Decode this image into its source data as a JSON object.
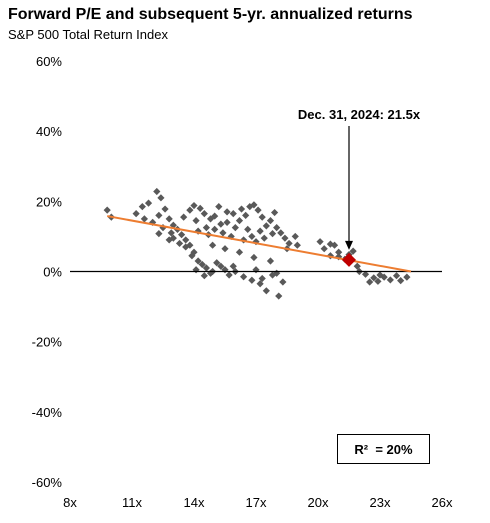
{
  "chart_data": {
    "type": "scatter",
    "title": "Forward P/E and subsequent 5-yr. annualized returns",
    "subtitle": "S&P 500 Total Return Index",
    "xlabel": "",
    "ylabel": "",
    "xlim": [
      8,
      26
    ],
    "ylim": [
      -60,
      60
    ],
    "x_ticks": [
      8,
      11,
      14,
      17,
      20,
      23,
      26
    ],
    "x_tick_labels": [
      "8x",
      "11x",
      "14x",
      "17x",
      "20x",
      "23x",
      "26x"
    ],
    "y_ticks": [
      60,
      40,
      20,
      0,
      -20,
      -40,
      -60
    ],
    "y_tick_labels": [
      "60%",
      "40%",
      "20%",
      "0%",
      "-20%",
      "-40%",
      "-60%"
    ],
    "grid": false,
    "colors": {
      "points": "#595959",
      "trendline": "#ED7D31",
      "current": "#C00000",
      "axis": "#000000"
    },
    "series": [
      {
        "points": [
          [
            9.8,
            17.5
          ],
          [
            10.0,
            15.5
          ],
          [
            11.2,
            16.5
          ],
          [
            11.5,
            18.5
          ],
          [
            11.8,
            19.5
          ],
          [
            12.2,
            22.8
          ],
          [
            12.4,
            21.0
          ],
          [
            11.6,
            15.0
          ],
          [
            12.0,
            14.0
          ],
          [
            12.3,
            16.0
          ],
          [
            12.6,
            17.8
          ],
          [
            12.8,
            15.0
          ],
          [
            13.0,
            13.2
          ],
          [
            12.5,
            12.5
          ],
          [
            12.9,
            11.0
          ],
          [
            13.2,
            12.0
          ],
          [
            13.4,
            10.5
          ],
          [
            13.6,
            9.0
          ],
          [
            13.3,
            8.0
          ],
          [
            13.8,
            7.5
          ],
          [
            13.0,
            9.5
          ],
          [
            12.3,
            10.8
          ],
          [
            12.8,
            9.0
          ],
          [
            13.5,
            15.5
          ],
          [
            13.8,
            17.5
          ],
          [
            14.0,
            18.8
          ],
          [
            14.3,
            18.0
          ],
          [
            14.1,
            14.5
          ],
          [
            14.5,
            16.5
          ],
          [
            14.8,
            15.0
          ],
          [
            14.6,
            12.5
          ],
          [
            14.2,
            11.5
          ],
          [
            14.7,
            10.5
          ],
          [
            15.0,
            12.0
          ],
          [
            15.3,
            13.5
          ],
          [
            15.6,
            14.0
          ],
          [
            15.0,
            15.8
          ],
          [
            15.4,
            11.0
          ],
          [
            15.8,
            10.0
          ],
          [
            16.0,
            12.5
          ],
          [
            16.2,
            14.5
          ],
          [
            16.5,
            16.0
          ],
          [
            16.7,
            18.5
          ],
          [
            16.9,
            19.0
          ],
          [
            17.1,
            17.5
          ],
          [
            17.3,
            15.5
          ],
          [
            17.5,
            13.0
          ],
          [
            17.7,
            14.5
          ],
          [
            17.9,
            16.8
          ],
          [
            17.2,
            11.5
          ],
          [
            16.8,
            10.0
          ],
          [
            16.4,
            9.0
          ],
          [
            16.6,
            12.0
          ],
          [
            17.0,
            8.5
          ],
          [
            17.4,
            9.5
          ],
          [
            17.8,
            10.8
          ],
          [
            18.0,
            12.5
          ],
          [
            18.2,
            11.0
          ],
          [
            18.4,
            9.5
          ],
          [
            18.6,
            8.0
          ],
          [
            18.9,
            10.0
          ],
          [
            19.0,
            7.5
          ],
          [
            18.5,
            6.5
          ],
          [
            15.6,
            17.0
          ],
          [
            15.9,
            16.5
          ],
          [
            16.3,
            17.8
          ],
          [
            15.2,
            18.5
          ],
          [
            13.6,
            7.0
          ],
          [
            14.0,
            5.5
          ],
          [
            13.9,
            4.5
          ],
          [
            14.2,
            3.0
          ],
          [
            14.4,
            2.0
          ],
          [
            14.1,
            0.5
          ],
          [
            14.6,
            1.0
          ],
          [
            14.9,
            0.0
          ],
          [
            15.1,
            2.5
          ],
          [
            15.3,
            1.5
          ],
          [
            15.5,
            0.5
          ],
          [
            15.7,
            -1.0
          ],
          [
            15.9,
            1.5
          ],
          [
            14.8,
            -0.5
          ],
          [
            14.5,
            -1.2
          ],
          [
            16.0,
            0.0
          ],
          [
            16.4,
            -1.5
          ],
          [
            16.8,
            -2.5
          ],
          [
            17.0,
            0.5
          ],
          [
            17.2,
            -3.5
          ],
          [
            17.5,
            -5.5
          ],
          [
            17.3,
            -2.0
          ],
          [
            17.8,
            -1.0
          ],
          [
            18.0,
            -0.5
          ],
          [
            18.3,
            -3.0
          ],
          [
            18.1,
            -7.0
          ],
          [
            17.7,
            3.0
          ],
          [
            16.9,
            4.0
          ],
          [
            16.2,
            5.5
          ],
          [
            15.5,
            6.5
          ],
          [
            14.9,
            7.5
          ],
          [
            20.1,
            8.5
          ],
          [
            20.3,
            6.5
          ],
          [
            20.6,
            4.5
          ],
          [
            20.8,
            7.5
          ],
          [
            21.0,
            5.5
          ],
          [
            21.3,
            3.5
          ],
          [
            21.5,
            4.8
          ],
          [
            21.7,
            5.8
          ],
          [
            21.9,
            1.5
          ],
          [
            22.0,
            0.0
          ],
          [
            22.3,
            -0.8
          ],
          [
            22.7,
            -1.8
          ],
          [
            23.0,
            -1.0
          ],
          [
            22.5,
            -3.0
          ],
          [
            22.9,
            -2.8
          ],
          [
            23.2,
            -1.6
          ],
          [
            23.5,
            -2.4
          ],
          [
            23.8,
            -1.2
          ],
          [
            24.0,
            -2.6
          ],
          [
            24.3,
            -1.6
          ],
          [
            21.0,
            4.2
          ],
          [
            20.6,
            7.8
          ]
        ]
      }
    ],
    "trendline": {
      "x": [
        9.8,
        24.5
      ],
      "y": [
        15.8,
        0.0
      ]
    },
    "highlight_point": {
      "x": 21.5,
      "y": 3.3
    },
    "annotations": [
      {
        "text": "Dec. 31, 2024: 21.5x",
        "x": 21.5,
        "y": 3.3
      },
      {
        "text": "R²  = 20%"
      }
    ]
  }
}
